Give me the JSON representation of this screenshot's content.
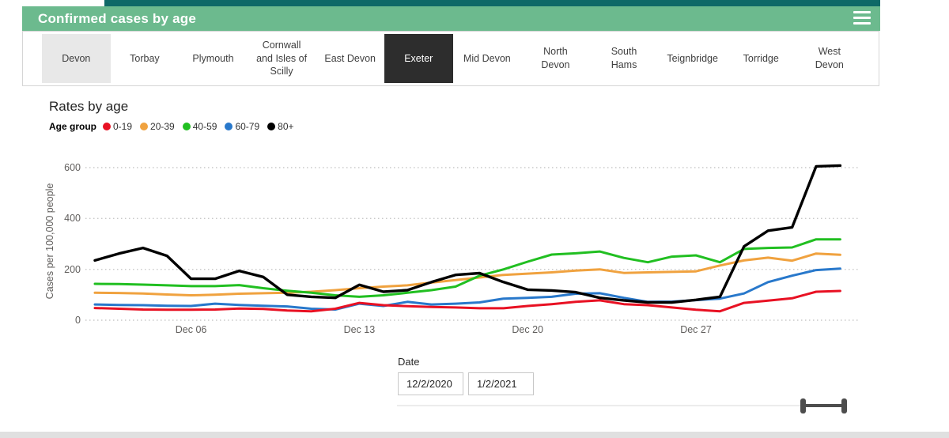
{
  "header": {
    "title": "Confirmed cases by age",
    "menu_icon": "hamburger-icon"
  },
  "tabs": {
    "items": [
      {
        "label": "Devon",
        "state": "highlighted"
      },
      {
        "label": "Torbay",
        "state": "normal"
      },
      {
        "label": "Plymouth",
        "state": "normal"
      },
      {
        "label": "Cornwall\nand Isles of\nScilly",
        "state": "normal"
      },
      {
        "label": "East Devon",
        "state": "normal"
      },
      {
        "label": "Exeter",
        "state": "selected"
      },
      {
        "label": "Mid Devon",
        "state": "normal"
      },
      {
        "label": "North\nDevon",
        "state": "normal"
      },
      {
        "label": "South\nHams",
        "state": "normal"
      },
      {
        "label": "Teignbridge",
        "state": "normal"
      },
      {
        "label": "Torridge",
        "state": "normal"
      },
      {
        "label": "West\nDevon",
        "state": "normal"
      }
    ]
  },
  "chart": {
    "title": "Rates by age",
    "legend_title": "Age group"
  },
  "chart_data": {
    "type": "line",
    "title": "Rates by age",
    "xlabel": "",
    "ylabel": "Cases per 100,000 people",
    "ylim": [
      0,
      600
    ],
    "yticks": [
      0,
      200,
      400,
      600
    ],
    "grid": "dotted-horizontal",
    "legend_position": "top",
    "x_start_date": "12/2/2020",
    "x_end_date": "1/2/2021",
    "xticks": [
      {
        "label": "Dec 06",
        "day": 4
      },
      {
        "label": "Dec 13",
        "day": 11
      },
      {
        "label": "Dec 20",
        "day": 18
      },
      {
        "label": "Dec 27",
        "day": 25
      }
    ],
    "series": [
      {
        "name": "0-19",
        "color": "#e81123",
        "values": [
          48,
          45,
          42,
          41,
          41,
          42,
          46,
          44,
          38,
          35,
          45,
          68,
          59,
          55,
          52,
          50,
          47,
          47,
          56,
          63,
          72,
          78,
          63,
          59,
          50,
          41,
          35,
          68,
          77,
          86,
          112,
          115
        ]
      },
      {
        "name": "20-39",
        "color": "#f0a23f",
        "values": [
          108,
          107,
          105,
          101,
          98,
          100,
          104,
          106,
          108,
          112,
          118,
          126,
          132,
          137,
          148,
          158,
          168,
          178,
          183,
          188,
          195,
          200,
          186,
          188,
          190,
          192,
          215,
          235,
          246,
          234,
          262,
          257
        ]
      },
      {
        "name": "40-59",
        "color": "#21bf21",
        "values": [
          143,
          142,
          140,
          137,
          134,
          134,
          138,
          126,
          116,
          108,
          98,
          92,
          98,
          108,
          118,
          132,
          175,
          200,
          230,
          258,
          263,
          270,
          245,
          228,
          250,
          255,
          228,
          280,
          284,
          286,
          318,
          318
        ]
      },
      {
        "name": "60-79",
        "color": "#2878cb",
        "values": [
          62,
          60,
          59,
          57,
          56,
          65,
          60,
          57,
          54,
          45,
          42,
          65,
          56,
          72,
          62,
          65,
          70,
          85,
          88,
          92,
          104,
          106,
          88,
          72,
          73,
          79,
          85,
          105,
          150,
          175,
          197,
          203
        ]
      },
      {
        "name": "80+",
        "color": "#000000",
        "values": [
          235,
          262,
          284,
          253,
          163,
          163,
          194,
          170,
          100,
          92,
          88,
          139,
          112,
          118,
          150,
          178,
          185,
          150,
          120,
          117,
          110,
          88,
          78,
          70,
          70,
          80,
          92,
          290,
          352,
          365,
          605,
          608
        ]
      }
    ]
  },
  "date_filter": {
    "label": "Date",
    "start_value": "12/2/2020",
    "end_value": "1/2/2021"
  },
  "colors": {
    "header_green": "#6cba8e",
    "header_teal": "#0e6967",
    "tab_selected_bg": "#2d2d2d",
    "tab_highlighted_bg": "#e8e8e8",
    "slider_dark": "#4d4d4d"
  }
}
